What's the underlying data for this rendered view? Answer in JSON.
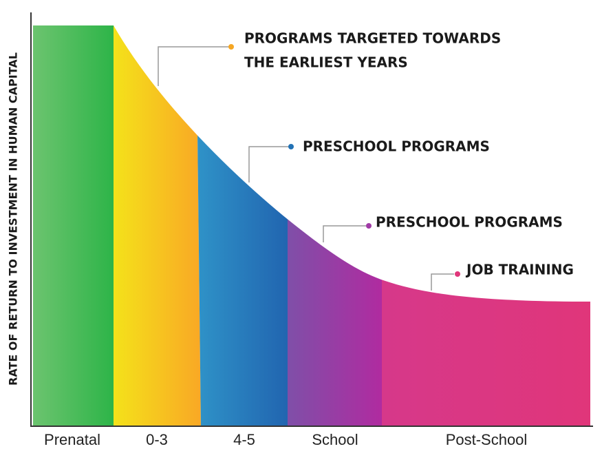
{
  "y_axis_label": "RATE OF RETURN TO INVESTMENT IN HUMAN CAPITAL",
  "categories": [
    "Prenatal",
    "0-3",
    "4-5",
    "School",
    "Post-School"
  ],
  "annotations": [
    {
      "lines": [
        "PROGRAMS TARGETED TOWARDS",
        "THE EARLIEST YEARS"
      ]
    },
    {
      "lines": [
        "PRESCHOOL PROGRAMS"
      ]
    },
    {
      "lines": [
        "PRESCHOOL PROGRAMS"
      ]
    },
    {
      "lines": [
        "JOB TRAINING"
      ]
    }
  ]
}
